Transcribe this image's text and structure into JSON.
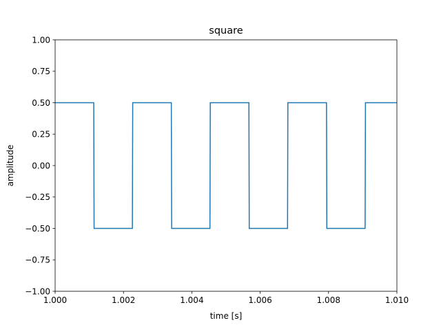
{
  "chart_data": {
    "type": "line",
    "title": "square",
    "xlabel": "time [s]",
    "ylabel": "amplitude",
    "xlim": [
      1.0,
      1.01
    ],
    "ylim": [
      -1.0,
      1.0
    ],
    "grid": false,
    "x_ticks": [
      1.0,
      1.002,
      1.004,
      1.006,
      1.008,
      1.01
    ],
    "x_tick_labels": [
      "1.000",
      "1.002",
      "1.004",
      "1.006",
      "1.008",
      "1.010"
    ],
    "y_ticks": [
      -1.0,
      -0.75,
      -0.5,
      -0.25,
      0.0,
      0.25,
      0.5,
      0.75,
      1.0
    ],
    "y_tick_labels": [
      "−1.00",
      "−0.75",
      "−0.50",
      "−0.25",
      "0.00",
      "0.25",
      "0.50",
      "0.75",
      "1.00"
    ],
    "series": [
      {
        "color": "#1f77b4",
        "points": [
          [
            1.0,
            0.5
          ],
          [
            1.00113,
            0.5
          ],
          [
            1.00114,
            -0.5
          ],
          [
            1.00226,
            -0.5
          ],
          [
            1.00227,
            0.5
          ],
          [
            1.0034,
            0.5
          ],
          [
            1.00341,
            -0.5
          ],
          [
            1.00453,
            -0.5
          ],
          [
            1.00454,
            0.5
          ],
          [
            1.00567,
            0.5
          ],
          [
            1.00568,
            -0.5
          ],
          [
            1.0068,
            -0.5
          ],
          [
            1.00681,
            0.5
          ],
          [
            1.00794,
            0.5
          ],
          [
            1.00795,
            -0.5
          ],
          [
            1.00907,
            -0.5
          ],
          [
            1.00908,
            0.5
          ],
          [
            1.01,
            0.5
          ]
        ]
      }
    ]
  }
}
